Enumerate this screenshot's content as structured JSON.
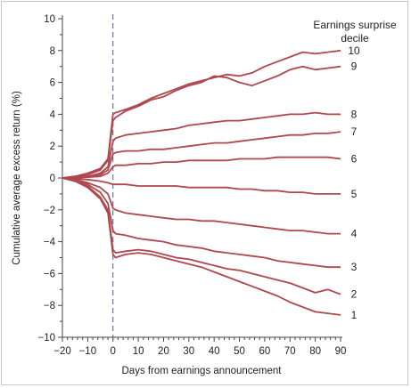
{
  "chart_data": {
    "type": "line",
    "xlabel": "Days from earnings announcement",
    "ylabel": "Cumulative average excess return (%)",
    "legend_title_line1": "Earnings surprise",
    "legend_title_line2": "decile",
    "xlim": [
      -20,
      90
    ],
    "ylim": [
      -10,
      10
    ],
    "x_ticks": [
      -20,
      -10,
      0,
      10,
      20,
      30,
      40,
      50,
      60,
      70,
      80,
      90
    ],
    "x_tick_labels": [
      "−20",
      "−10",
      "0",
      "10",
      "20",
      "30",
      "40",
      "50",
      "60",
      "70",
      "80",
      "90"
    ],
    "y_ticks": [
      -10,
      -8,
      -6,
      -4,
      -2,
      0,
      2,
      4,
      6,
      8,
      10
    ],
    "y_tick_labels": [
      "−10",
      "−8",
      "−6",
      "−4",
      "−2",
      "0",
      "2",
      "4",
      "6",
      "8",
      "10"
    ],
    "announcement_day": 0,
    "line_color": "#b0464e",
    "series": [
      {
        "name": "10",
        "x": [
          -20,
          -15,
          -10,
          -5,
          -2,
          0,
          1,
          5,
          10,
          15,
          20,
          25,
          30,
          35,
          40,
          45,
          50,
          55,
          60,
          65,
          70,
          75,
          80,
          85,
          90
        ],
        "y": [
          0,
          0.1,
          0.3,
          0.6,
          1.2,
          4.0,
          4.1,
          4.3,
          4.6,
          5.0,
          5.3,
          5.6,
          5.9,
          6.1,
          6.3,
          6.5,
          6.4,
          6.6,
          7.0,
          7.3,
          7.6,
          7.9,
          7.8,
          7.9,
          8.0
        ]
      },
      {
        "name": "9",
        "x": [
          -20,
          -15,
          -10,
          -5,
          -2,
          0,
          1,
          5,
          10,
          15,
          20,
          25,
          30,
          35,
          40,
          45,
          50,
          55,
          60,
          65,
          70,
          75,
          80,
          85,
          90
        ],
        "y": [
          0,
          0.1,
          0.2,
          0.5,
          1.1,
          3.6,
          3.8,
          4.2,
          4.5,
          4.9,
          5.1,
          5.5,
          5.8,
          6.0,
          6.4,
          6.3,
          6.0,
          5.8,
          6.1,
          6.4,
          6.8,
          7.0,
          6.8,
          6.9,
          7.0
        ]
      },
      {
        "name": "8",
        "x": [
          -20,
          -15,
          -10,
          -5,
          -2,
          0,
          1,
          5,
          10,
          15,
          20,
          25,
          30,
          35,
          40,
          45,
          50,
          55,
          60,
          65,
          70,
          75,
          80,
          85,
          90
        ],
        "y": [
          0,
          0.05,
          0.1,
          0.3,
          0.7,
          2.3,
          2.5,
          2.7,
          2.8,
          2.9,
          3.0,
          3.1,
          3.3,
          3.4,
          3.5,
          3.6,
          3.6,
          3.7,
          3.8,
          3.9,
          4.0,
          4.0,
          4.1,
          4.0,
          4.0
        ]
      },
      {
        "name": "7",
        "x": [
          -20,
          -15,
          -10,
          -5,
          -2,
          0,
          1,
          5,
          10,
          15,
          20,
          25,
          30,
          35,
          40,
          45,
          50,
          55,
          60,
          65,
          70,
          75,
          80,
          85,
          90
        ],
        "y": [
          0,
          0.05,
          0.1,
          0.2,
          0.5,
          1.5,
          1.6,
          1.7,
          1.7,
          1.8,
          1.8,
          1.9,
          2.0,
          2.1,
          2.2,
          2.2,
          2.3,
          2.4,
          2.5,
          2.6,
          2.7,
          2.7,
          2.8,
          2.8,
          2.9
        ]
      },
      {
        "name": "6",
        "x": [
          -20,
          -15,
          -10,
          -5,
          -2,
          0,
          1,
          5,
          10,
          15,
          20,
          25,
          30,
          35,
          40,
          45,
          50,
          55,
          60,
          65,
          70,
          75,
          80,
          85,
          90
        ],
        "y": [
          0,
          0.0,
          0.05,
          0.1,
          0.3,
          0.7,
          0.8,
          0.8,
          0.9,
          0.9,
          1.0,
          1.0,
          1.1,
          1.1,
          1.1,
          1.1,
          1.2,
          1.2,
          1.2,
          1.3,
          1.3,
          1.3,
          1.3,
          1.3,
          1.2
        ]
      },
      {
        "name": "5",
        "x": [
          -20,
          -15,
          -10,
          -5,
          -2,
          0,
          1,
          5,
          10,
          15,
          20,
          25,
          30,
          35,
          40,
          45,
          50,
          55,
          60,
          65,
          70,
          75,
          80,
          85,
          90
        ],
        "y": [
          0,
          -0.05,
          -0.1,
          -0.2,
          -0.3,
          -0.4,
          -0.4,
          -0.4,
          -0.5,
          -0.5,
          -0.5,
          -0.5,
          -0.6,
          -0.6,
          -0.6,
          -0.6,
          -0.7,
          -0.7,
          -0.8,
          -0.8,
          -0.9,
          -0.9,
          -1.0,
          -1.0,
          -1.0
        ]
      },
      {
        "name": "4",
        "x": [
          -20,
          -15,
          -10,
          -5,
          -2,
          0,
          1,
          5,
          10,
          15,
          20,
          25,
          30,
          35,
          40,
          45,
          50,
          55,
          60,
          65,
          70,
          75,
          80,
          85,
          90
        ],
        "y": [
          0,
          -0.1,
          -0.3,
          -0.6,
          -1.0,
          -1.9,
          -2.0,
          -2.2,
          -2.3,
          -2.4,
          -2.5,
          -2.6,
          -2.6,
          -2.7,
          -2.7,
          -2.8,
          -2.9,
          -3.0,
          -3.1,
          -3.2,
          -3.3,
          -3.3,
          -3.4,
          -3.5,
          -3.5
        ]
      },
      {
        "name": "3",
        "x": [
          -20,
          -15,
          -10,
          -5,
          -2,
          0,
          1,
          5,
          10,
          15,
          20,
          25,
          30,
          35,
          40,
          45,
          50,
          55,
          60,
          65,
          70,
          75,
          80,
          85,
          90
        ],
        "y": [
          0,
          -0.1,
          -0.4,
          -0.9,
          -1.6,
          -3.3,
          -3.5,
          -3.6,
          -3.8,
          -3.9,
          -4.0,
          -4.2,
          -4.3,
          -4.4,
          -4.6,
          -4.7,
          -4.8,
          -4.9,
          -5.0,
          -5.2,
          -5.3,
          -5.4,
          -5.5,
          -5.6,
          -5.6
        ]
      },
      {
        "name": "2",
        "x": [
          -20,
          -15,
          -10,
          -5,
          -2,
          0,
          1,
          5,
          10,
          15,
          20,
          25,
          30,
          35,
          40,
          45,
          50,
          55,
          60,
          65,
          70,
          75,
          80,
          85,
          90
        ],
        "y": [
          0,
          -0.2,
          -0.5,
          -1.2,
          -2.0,
          -4.5,
          -4.7,
          -4.6,
          -4.5,
          -4.6,
          -4.8,
          -5.0,
          -5.1,
          -5.3,
          -5.5,
          -5.7,
          -5.8,
          -6.0,
          -6.2,
          -6.4,
          -6.6,
          -6.9,
          -7.2,
          -7.0,
          -7.3
        ]
      },
      {
        "name": "1",
        "x": [
          -20,
          -15,
          -10,
          -5,
          -2,
          0,
          1,
          5,
          10,
          15,
          20,
          25,
          30,
          35,
          40,
          45,
          50,
          55,
          60,
          65,
          70,
          75,
          80,
          85,
          90
        ],
        "y": [
          0,
          -0.2,
          -0.6,
          -1.3,
          -2.2,
          -4.8,
          -5.0,
          -4.8,
          -4.7,
          -4.8,
          -5.0,
          -5.2,
          -5.4,
          -5.6,
          -5.9,
          -6.2,
          -6.5,
          -6.8,
          -7.1,
          -7.4,
          -7.8,
          -8.1,
          -8.4,
          -8.5,
          -8.6
        ]
      }
    ]
  }
}
